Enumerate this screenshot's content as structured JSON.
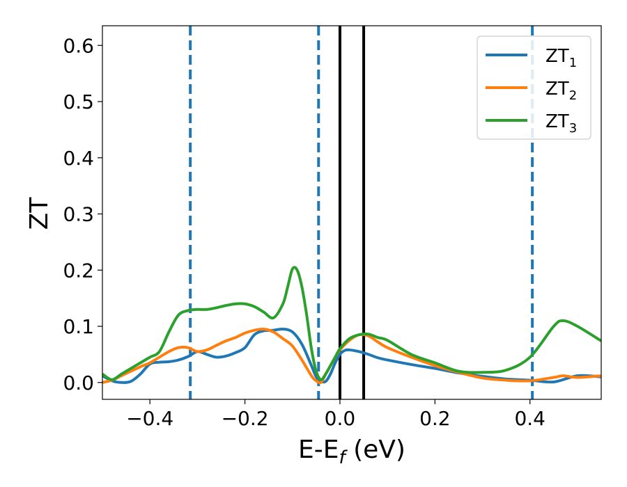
{
  "chart_data": {
    "type": "line",
    "xlabel": "E-E",
    "xlabel_sub": "f",
    "xlabel_unit": "(eV)",
    "ylabel": "ZT",
    "xlim": [
      -0.5,
      0.55
    ],
    "ylim": [
      -0.03,
      0.635
    ],
    "xticks": [
      -0.4,
      -0.2,
      0.0,
      0.2,
      0.4
    ],
    "xtick_labels": [
      "−0.4",
      "−0.2",
      "0.0",
      "0.2",
      "0.4"
    ],
    "yticks": [
      0.0,
      0.1,
      0.2,
      0.3,
      0.4,
      0.5,
      0.6
    ],
    "ytick_labels": [
      "0.0",
      "0.1",
      "0.2",
      "0.3",
      "0.4",
      "0.5",
      "0.6"
    ],
    "grid": false,
    "legend_position": "top-right",
    "vlines_dashed": [
      -0.315,
      -0.045,
      0.405
    ],
    "vlines_solid": [
      0.0,
      0.05
    ],
    "series": [
      {
        "name": "ZT",
        "name_sub": "1",
        "color": "#1f77b4",
        "x": [
          -0.5,
          -0.48,
          -0.46,
          -0.44,
          -0.42,
          -0.4,
          -0.38,
          -0.36,
          -0.34,
          -0.32,
          -0.3,
          -0.28,
          -0.26,
          -0.24,
          -0.22,
          -0.2,
          -0.18,
          -0.16,
          -0.14,
          -0.12,
          -0.1,
          -0.08,
          -0.06,
          -0.05,
          -0.04,
          -0.03,
          -0.02,
          -0.01,
          0.0,
          0.01,
          0.02,
          0.04,
          0.06,
          0.08,
          0.1,
          0.15,
          0.2,
          0.25,
          0.3,
          0.35,
          0.4,
          0.45,
          0.5,
          0.55
        ],
        "y": [
          0.012,
          0.003,
          0.0,
          0.002,
          0.015,
          0.033,
          0.036,
          0.037,
          0.04,
          0.046,
          0.055,
          0.05,
          0.045,
          0.047,
          0.053,
          0.062,
          0.085,
          0.092,
          0.093,
          0.095,
          0.09,
          0.068,
          0.03,
          0.01,
          0.002,
          0.002,
          0.015,
          0.035,
          0.05,
          0.057,
          0.058,
          0.055,
          0.05,
          0.044,
          0.04,
          0.032,
          0.025,
          0.017,
          0.011,
          0.006,
          0.004,
          0.001,
          0.012,
          0.01
        ]
      },
      {
        "name": "ZT",
        "name_sub": "2",
        "color": "#ff7f0e",
        "x": [
          -0.5,
          -0.48,
          -0.46,
          -0.44,
          -0.42,
          -0.4,
          -0.38,
          -0.36,
          -0.34,
          -0.32,
          -0.3,
          -0.28,
          -0.26,
          -0.24,
          -0.22,
          -0.2,
          -0.18,
          -0.16,
          -0.14,
          -0.12,
          -0.1,
          -0.08,
          -0.06,
          -0.05,
          -0.04,
          -0.03,
          -0.02,
          -0.01,
          0.0,
          0.02,
          0.04,
          0.06,
          0.08,
          0.1,
          0.15,
          0.2,
          0.25,
          0.3,
          0.35,
          0.4,
          0.45,
          0.47,
          0.5,
          0.55
        ],
        "y": [
          0.0,
          0.004,
          0.012,
          0.02,
          0.028,
          0.035,
          0.045,
          0.055,
          0.062,
          0.062,
          0.055,
          0.058,
          0.066,
          0.074,
          0.08,
          0.088,
          0.093,
          0.095,
          0.09,
          0.078,
          0.065,
          0.04,
          0.012,
          0.003,
          0.0,
          0.015,
          0.03,
          0.045,
          0.058,
          0.075,
          0.085,
          0.083,
          0.072,
          0.062,
          0.045,
          0.03,
          0.018,
          0.008,
          0.004,
          0.003,
          0.009,
          0.012,
          0.009,
          0.012
        ]
      },
      {
        "name": "ZT",
        "name_sub": "3",
        "color": "#2ca02c",
        "x": [
          -0.5,
          -0.48,
          -0.46,
          -0.44,
          -0.42,
          -0.4,
          -0.38,
          -0.36,
          -0.34,
          -0.32,
          -0.3,
          -0.28,
          -0.26,
          -0.24,
          -0.22,
          -0.2,
          -0.18,
          -0.16,
          -0.14,
          -0.12,
          -0.11,
          -0.1,
          -0.09,
          -0.08,
          -0.07,
          -0.06,
          -0.05,
          -0.04,
          -0.03,
          -0.02,
          -0.01,
          0.0,
          0.02,
          0.04,
          0.06,
          0.08,
          0.1,
          0.15,
          0.2,
          0.25,
          0.3,
          0.35,
          0.4,
          0.45,
          0.47,
          0.5,
          0.55
        ],
        "y": [
          0.015,
          0.005,
          0.015,
          0.025,
          0.035,
          0.045,
          0.055,
          0.09,
          0.12,
          0.128,
          0.13,
          0.13,
          0.133,
          0.137,
          0.14,
          0.14,
          0.135,
          0.125,
          0.115,
          0.14,
          0.17,
          0.202,
          0.2,
          0.17,
          0.12,
          0.06,
          0.02,
          0.005,
          0.015,
          0.03,
          0.045,
          0.06,
          0.078,
          0.085,
          0.086,
          0.08,
          0.075,
          0.05,
          0.035,
          0.02,
          0.018,
          0.022,
          0.045,
          0.1,
          0.11,
          0.1,
          0.074
        ]
      }
    ]
  }
}
